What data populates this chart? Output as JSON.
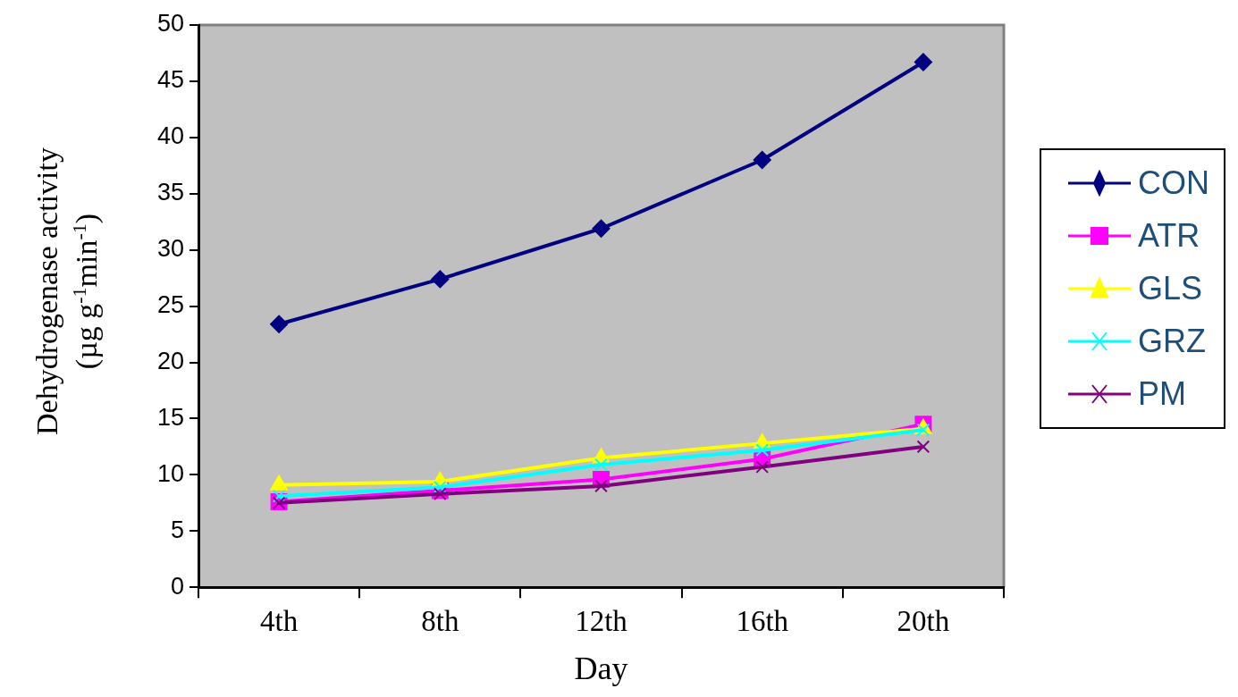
{
  "chart_data": {
    "type": "line",
    "xlabel": "Day",
    "ylabel": "Dehydrogenase activity (µg g$^{-1}$min$^{-1}$)",
    "categories": [
      "4th",
      "8th",
      "12th",
      "16th",
      "20th"
    ],
    "series": [
      {
        "name": "CON",
        "color": "#000080",
        "marker": "diamond",
        "values": [
          23.4,
          27.4,
          31.9,
          38.0,
          46.7
        ]
      },
      {
        "name": "ATR",
        "color": "#ff00ff",
        "marker": "square",
        "values": [
          7.6,
          8.6,
          9.6,
          11.4,
          14.5
        ]
      },
      {
        "name": "GLS",
        "color": "#ffff00",
        "marker": "triangle",
        "values": [
          9.1,
          9.4,
          11.5,
          12.8,
          14.1
        ]
      },
      {
        "name": "GRZ",
        "color": "#00ffff",
        "marker": "cross",
        "values": [
          8.1,
          8.9,
          10.9,
          12.2,
          14.0
        ]
      },
      {
        "name": "PM",
        "color": "#800080",
        "marker": "cross",
        "values": [
          7.5,
          8.3,
          9.0,
          10.7,
          12.5
        ]
      }
    ],
    "ylim": [
      0,
      50
    ],
    "yticks": [
      0,
      5,
      10,
      15,
      20,
      25,
      30,
      35,
      40,
      45,
      50
    ],
    "grid": false,
    "legend": "right",
    "line_style": "solid"
  }
}
